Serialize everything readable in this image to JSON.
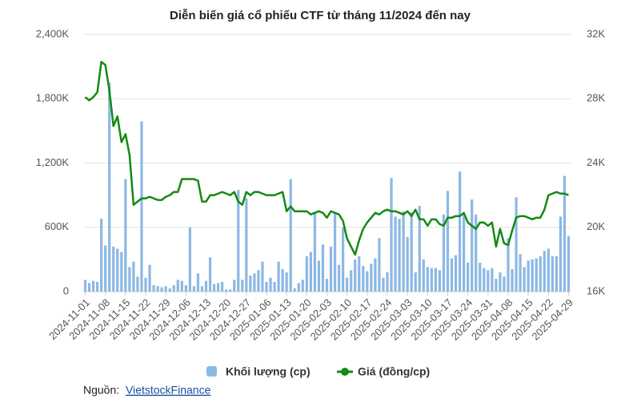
{
  "chart_data": {
    "type": "bar-line",
    "title": "Diễn biến giá cổ phiếu CTF từ tháng 11/2024 đến nay",
    "categories": [
      "2024-11-01",
      null,
      null,
      null,
      null,
      "2024-11-08",
      null,
      null,
      null,
      null,
      "2024-11-15",
      null,
      null,
      null,
      null,
      "2024-11-22",
      null,
      null,
      null,
      null,
      "2024-11-29",
      null,
      null,
      null,
      null,
      "2024-12-06",
      null,
      null,
      null,
      null,
      "2024-12-13",
      null,
      null,
      null,
      null,
      "2024-12-20",
      null,
      null,
      null,
      null,
      "2024-12-27",
      null,
      null,
      null,
      null,
      "2025-01-06",
      null,
      null,
      null,
      null,
      "2025-01-13",
      null,
      null,
      null,
      null,
      "2025-01-20",
      null,
      null,
      null,
      null,
      "2025-02-03",
      null,
      null,
      null,
      null,
      "2025-02-10",
      null,
      null,
      null,
      null,
      "2025-02-17",
      null,
      null,
      null,
      null,
      "2025-02-24",
      null,
      null,
      null,
      null,
      "2025-03-03",
      null,
      null,
      null,
      null,
      "2025-03-10",
      null,
      null,
      null,
      null,
      "2025-03-17",
      null,
      null,
      null,
      null,
      "2025-03-24",
      null,
      null,
      null,
      null,
      "2025-03-31",
      null,
      null,
      null,
      null,
      "2025-04-08",
      null,
      null,
      null,
      null,
      "2025-04-15",
      null,
      null,
      null,
      null,
      "2025-04-22",
      null,
      null,
      null,
      null,
      "2025-04-29"
    ],
    "series": [
      {
        "name": "Khối lượng (cp)",
        "kind": "bar",
        "color": "#8cb8e4",
        "values": [
          110000,
          80000,
          100000,
          90000,
          680000,
          430000,
          1950000,
          420000,
          400000,
          370000,
          1050000,
          230000,
          280000,
          140000,
          1590000,
          130000,
          250000,
          60000,
          50000,
          40000,
          50000,
          30000,
          60000,
          110000,
          100000,
          60000,
          600000,
          50000,
          170000,
          50000,
          100000,
          320000,
          70000,
          80000,
          90000,
          20000,
          20000,
          110000,
          950000,
          110000,
          870000,
          150000,
          170000,
          200000,
          280000,
          90000,
          130000,
          90000,
          280000,
          210000,
          180000,
          1050000,
          30000,
          80000,
          110000,
          330000,
          370000,
          740000,
          290000,
          440000,
          120000,
          420000,
          740000,
          250000,
          600000,
          130000,
          200000,
          300000,
          330000,
          240000,
          190000,
          260000,
          310000,
          500000,
          130000,
          180000,
          1060000,
          700000,
          680000,
          750000,
          510000,
          740000,
          180000,
          800000,
          300000,
          230000,
          220000,
          220000,
          200000,
          720000,
          940000,
          310000,
          340000,
          1120000,
          720000,
          270000,
          860000,
          720000,
          270000,
          220000,
          200000,
          220000,
          120000,
          180000,
          140000,
          500000,
          210000,
          880000,
          350000,
          230000,
          290000,
          300000,
          310000,
          330000,
          380000,
          400000,
          330000,
          330000,
          700000,
          1080000,
          520000
        ]
      },
      {
        "name": "Giá (đồng/cp)",
        "kind": "line",
        "axis": "y2",
        "color": "#138a13",
        "values": [
          28100,
          27900,
          28100,
          28400,
          30300,
          30100,
          28500,
          26300,
          26900,
          25300,
          25800,
          24500,
          21400,
          21600,
          21800,
          21800,
          21900,
          21800,
          21700,
          21700,
          21900,
          22000,
          22200,
          22200,
          23000,
          23000,
          23000,
          23000,
          22900,
          21600,
          21600,
          22000,
          22000,
          22100,
          22200,
          22100,
          22000,
          22200,
          21600,
          21400,
          22200,
          22000,
          22200,
          22200,
          22100,
          22000,
          22000,
          22000,
          22100,
          22200,
          21000,
          21300,
          21000,
          21000,
          21000,
          21000,
          20800,
          20900,
          21000,
          20900,
          20600,
          21000,
          20900,
          20800,
          20400,
          19300,
          18800,
          18300,
          19200,
          19900,
          20300,
          20600,
          20900,
          20800,
          21000,
          21100,
          21000,
          21000,
          20900,
          20800,
          21000,
          20700,
          21100,
          20500,
          20500,
          20100,
          20500,
          20500,
          20200,
          20100,
          20600,
          20600,
          20700,
          20700,
          20900,
          20300,
          20100,
          19900,
          20300,
          20300,
          20100,
          20300,
          18800,
          19900,
          19000,
          18900,
          19800,
          20600,
          20700,
          20700,
          20600,
          20500,
          20600,
          20600,
          21100,
          22000,
          22100,
          22200,
          22100,
          22100,
          22000
        ]
      }
    ],
    "ylim": [
      0,
      2400000
    ],
    "yticks": [
      0,
      {
        "value": 600000,
        "label": "600K"
      },
      {
        "value": 1200000,
        "label": "1,200K"
      },
      {
        "value": 1800000,
        "label": "1,800K"
      },
      {
        "value": 2400000,
        "label": "2,400K"
      }
    ],
    "y2lim": [
      16000,
      32000
    ],
    "y2ticks": [
      {
        "value": 16000,
        "label": "16K"
      },
      {
        "value": 20000,
        "label": "20K"
      },
      {
        "value": 24000,
        "label": "24K"
      },
      {
        "value": 28000,
        "label": "28K"
      },
      {
        "value": 32000,
        "label": "32K"
      }
    ],
    "grid": true,
    "legend": "bottom",
    "source_label": "Nguồn:",
    "source": "VietstockFinance"
  }
}
